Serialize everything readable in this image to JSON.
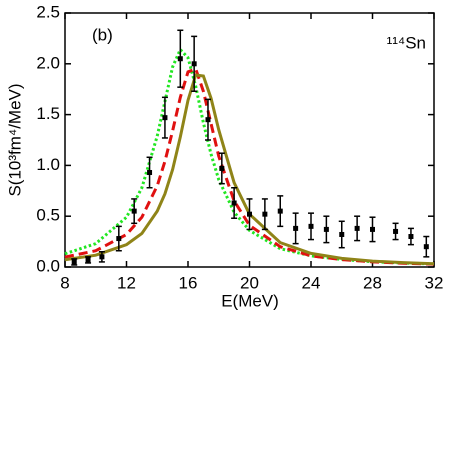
{
  "chart_data": {
    "type": "line",
    "panel_label": "(b)",
    "annotation": "¹¹⁴Sn",
    "x_label": "E(MeV)",
    "y_label": "S(10³fm⁴/MeV)",
    "xlim": [
      8,
      32
    ],
    "ylim": [
      0,
      2.5
    ],
    "xticks": [
      8,
      12,
      16,
      20,
      24,
      28,
      32
    ],
    "yticks": [
      {
        "value": 0,
        "label": "0.0"
      },
      0.5,
      {
        "value": 1,
        "label": "1.0"
      },
      1.5,
      {
        "value": 2,
        "label": "2.0"
      },
      2.5
    ],
    "experiment": {
      "color": "#000000",
      "x": [
        8.6,
        9.5,
        10.4,
        11.5,
        12.5,
        13.5,
        14.5,
        15.5,
        16.4,
        17.3,
        18.2,
        19.0,
        20.0,
        21.0,
        22.0,
        23.0,
        24.0,
        25.0,
        26.0,
        27.0,
        28.0,
        29.5,
        30.5,
        31.5
      ],
      "values": [
        0.05,
        0.07,
        0.1,
        0.28,
        0.55,
        0.93,
        1.47,
        2.05,
        2.0,
        1.45,
        0.97,
        0.63,
        0.52,
        0.52,
        0.55,
        0.38,
        0.4,
        0.37,
        0.32,
        0.38,
        0.37,
        0.35,
        0.3,
        0.2
      ],
      "errors": [
        0.03,
        0.03,
        0.05,
        0.12,
        0.12,
        0.15,
        0.2,
        0.28,
        0.27,
        0.2,
        0.15,
        0.15,
        0.15,
        0.15,
        0.15,
        0.15,
        0.13,
        0.13,
        0.13,
        0.12,
        0.12,
        0.08,
        0.08,
        0.1
      ]
    },
    "x": [
      8,
      10,
      12,
      13,
      14,
      14.5,
      15,
      15.5,
      16,
      16.5,
      17,
      17.5,
      18,
      19,
      20,
      22,
      24,
      26,
      28,
      30,
      32
    ],
    "series": [
      {
        "color": "#22e622",
        "style": "dotted",
        "values": [
          0.13,
          0.23,
          0.49,
          0.78,
          1.29,
          1.63,
          1.97,
          2.14,
          2.06,
          1.78,
          1.42,
          1.11,
          0.86,
          0.54,
          0.36,
          0.18,
          0.11,
          0.074,
          0.052,
          0.039,
          0.03
        ]
      },
      {
        "color": "#e01010",
        "style": "dashed",
        "values": [
          0.098,
          0.16,
          0.32,
          0.49,
          0.8,
          1.04,
          1.34,
          1.67,
          1.92,
          1.95,
          1.73,
          1.41,
          1.09,
          0.65,
          0.41,
          0.2,
          0.11,
          0.073,
          0.051,
          0.037,
          0.028
        ]
      },
      {
        "color": "#8f8418",
        "style": "solid",
        "values": [
          0.071,
          0.116,
          0.22,
          0.33,
          0.55,
          0.72,
          0.96,
          1.28,
          1.64,
          1.89,
          1.88,
          1.66,
          1.35,
          0.83,
          0.52,
          0.24,
          0.134,
          0.085,
          0.058,
          0.043,
          0.032
        ]
      }
    ]
  }
}
